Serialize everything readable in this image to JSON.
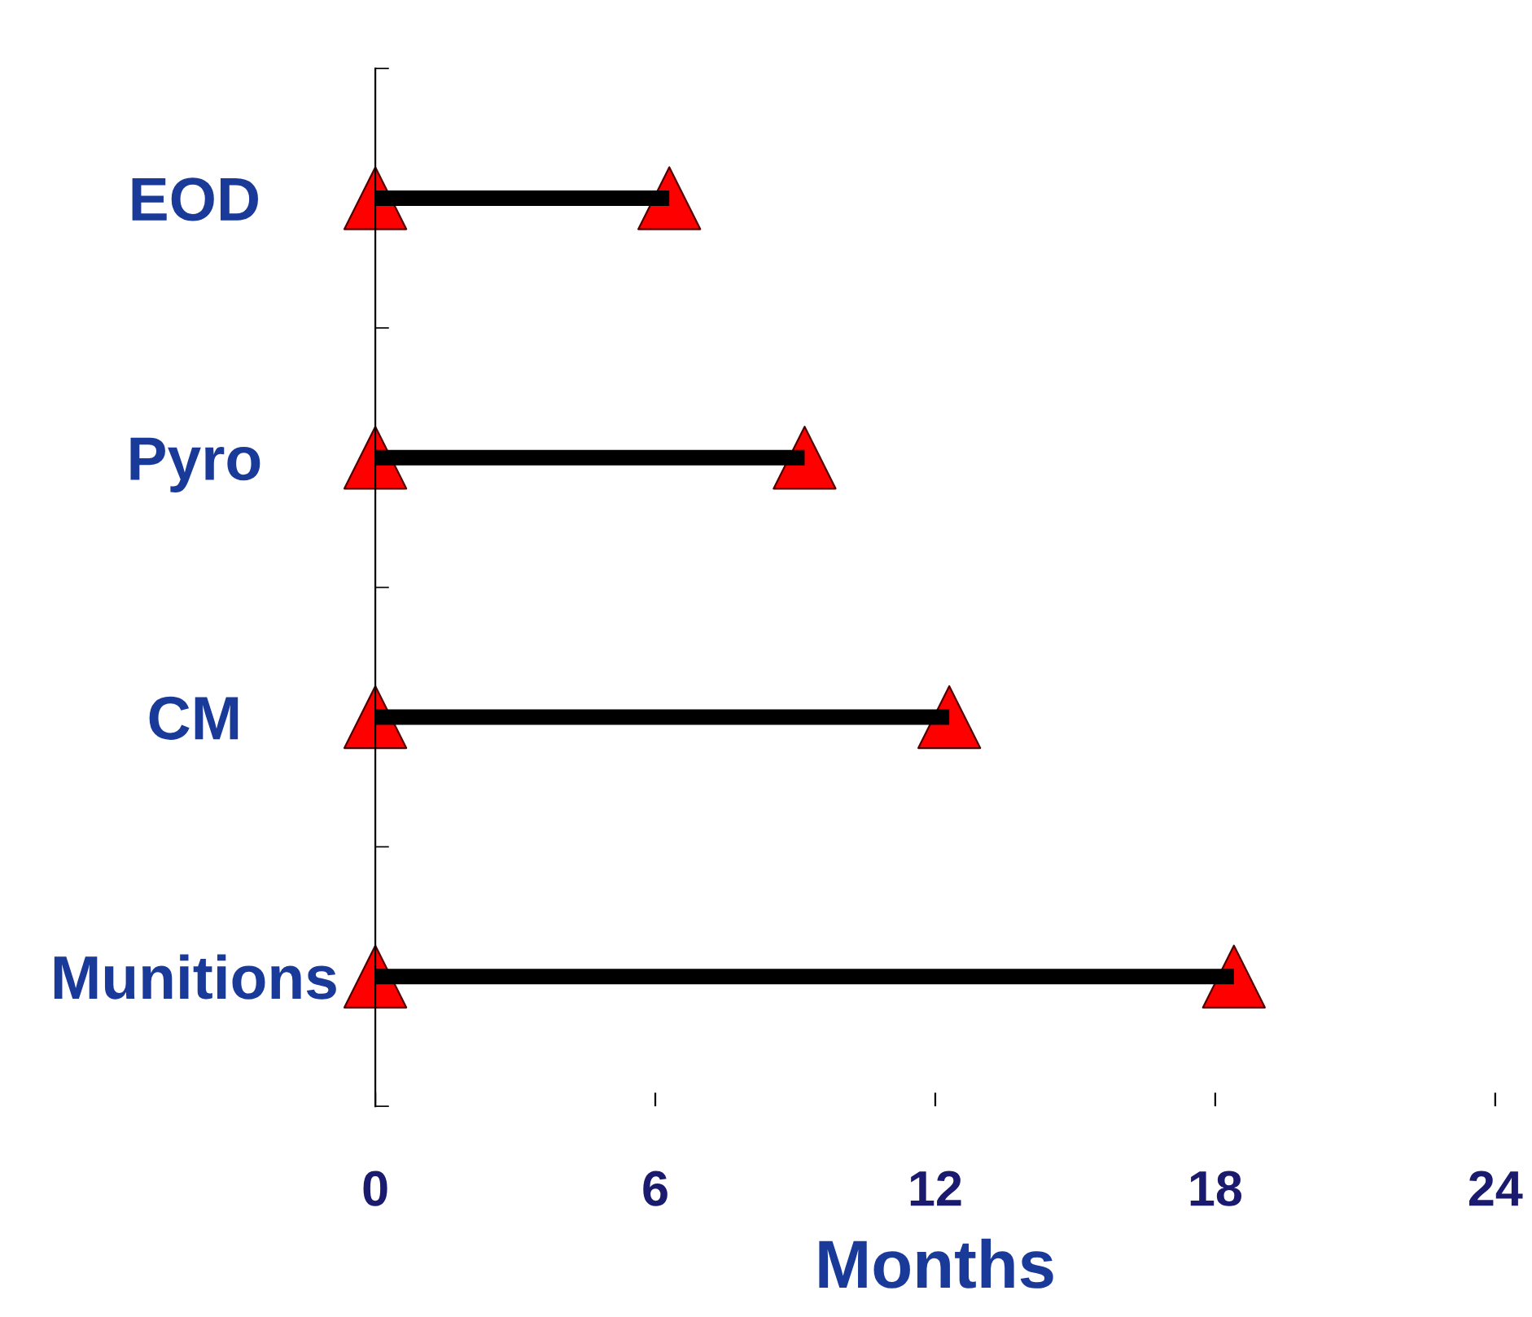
{
  "chart_data": {
    "type": "bar",
    "orientation": "horizontal",
    "xlabel": "Months",
    "categories": [
      "EOD",
      "Pyro",
      "CM",
      "Munitions"
    ],
    "series": [
      {
        "color": "#000000",
        "values": [
          6.3,
          9.2,
          12.3,
          18.4
        ]
      },
      {
        "type": "scatter",
        "color": "#ff0000",
        "marker": "triangle",
        "values": [
          0,
          0,
          0,
          0
        ]
      },
      {
        "type": "scatter",
        "color": "#ff0000",
        "marker": "triangle",
        "values": [
          6.3,
          9.2,
          12.3,
          18.4
        ]
      }
    ],
    "xlim": [
      0,
      24
    ],
    "xticks": [
      0,
      6,
      12,
      18,
      24
    ],
    "grid": false,
    "legend": false
  }
}
